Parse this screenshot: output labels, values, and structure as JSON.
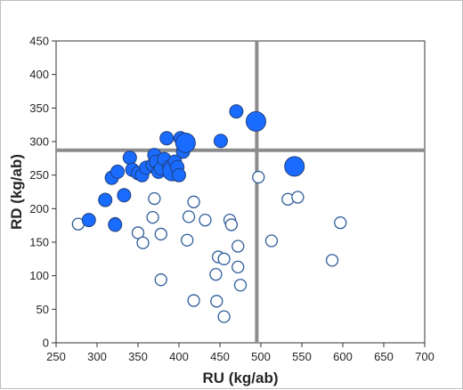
{
  "chart_data": {
    "type": "scatter",
    "xlabel": "RU (kg/ab)",
    "ylabel": "RD (kg/ab)",
    "xlim": [
      250,
      700
    ],
    "ylim": [
      0,
      450
    ],
    "xticks": [
      250,
      300,
      350,
      400,
      450,
      500,
      550,
      600,
      650,
      700
    ],
    "yticks": [
      0,
      50,
      100,
      150,
      200,
      250,
      300,
      350,
      400,
      450
    ],
    "grid": false,
    "legend": "none",
    "reference_lines": {
      "vertical_x": 495,
      "horizontal_y": 287
    },
    "colors": {
      "filled_fill": "#1a6bff",
      "filled_stroke": "#1f3f7a",
      "open_stroke": "#2e5c9a",
      "reference_line": "#8c8c8c",
      "plot_border": "#333333"
    },
    "series": [
      {
        "style": "filled",
        "points": [
          {
            "x": 290,
            "y": 183,
            "size": "small"
          },
          {
            "x": 310,
            "y": 213,
            "size": "small"
          },
          {
            "x": 318,
            "y": 246,
            "size": "small"
          },
          {
            "x": 322,
            "y": 176,
            "size": "small"
          },
          {
            "x": 325,
            "y": 255,
            "size": "small"
          },
          {
            "x": 333,
            "y": 220,
            "size": "small"
          },
          {
            "x": 340,
            "y": 276,
            "size": "small"
          },
          {
            "x": 343,
            "y": 258,
            "size": "small"
          },
          {
            "x": 350,
            "y": 253,
            "size": "small"
          },
          {
            "x": 355,
            "y": 250,
            "size": "small"
          },
          {
            "x": 360,
            "y": 261,
            "size": "small"
          },
          {
            "x": 368,
            "y": 265,
            "size": "small"
          },
          {
            "x": 370,
            "y": 280,
            "size": "small"
          },
          {
            "x": 372,
            "y": 270,
            "size": "small"
          },
          {
            "x": 375,
            "y": 255,
            "size": "small"
          },
          {
            "x": 378,
            "y": 260,
            "size": "small"
          },
          {
            "x": 382,
            "y": 274,
            "size": "small"
          },
          {
            "x": 385,
            "y": 305,
            "size": "small"
          },
          {
            "x": 388,
            "y": 262,
            "size": "small"
          },
          {
            "x": 392,
            "y": 256,
            "size": "large"
          },
          {
            "x": 395,
            "y": 270,
            "size": "small"
          },
          {
            "x": 398,
            "y": 262,
            "size": "small"
          },
          {
            "x": 400,
            "y": 250,
            "size": "small"
          },
          {
            "x": 402,
            "y": 305,
            "size": "small"
          },
          {
            "x": 405,
            "y": 285,
            "size": "small"
          },
          {
            "x": 408,
            "y": 298,
            "size": "large"
          },
          {
            "x": 451,
            "y": 301,
            "size": "small"
          },
          {
            "x": 470,
            "y": 345,
            "size": "small"
          },
          {
            "x": 494,
            "y": 330,
            "size": "large"
          },
          {
            "x": 541,
            "y": 263,
            "size": "large"
          }
        ]
      },
      {
        "style": "open",
        "points": [
          {
            "x": 277,
            "y": 177
          },
          {
            "x": 322,
            "y": 178
          },
          {
            "x": 350,
            "y": 164
          },
          {
            "x": 356,
            "y": 149
          },
          {
            "x": 368,
            "y": 187
          },
          {
            "x": 370,
            "y": 215
          },
          {
            "x": 378,
            "y": 162
          },
          {
            "x": 378,
            "y": 94
          },
          {
            "x": 410,
            "y": 153
          },
          {
            "x": 412,
            "y": 188
          },
          {
            "x": 418,
            "y": 210
          },
          {
            "x": 418,
            "y": 63
          },
          {
            "x": 432,
            "y": 183
          },
          {
            "x": 445,
            "y": 102
          },
          {
            "x": 446,
            "y": 62
          },
          {
            "x": 448,
            "y": 128
          },
          {
            "x": 455,
            "y": 125
          },
          {
            "x": 455,
            "y": 39
          },
          {
            "x": 462,
            "y": 183
          },
          {
            "x": 464,
            "y": 176
          },
          {
            "x": 472,
            "y": 144
          },
          {
            "x": 472,
            "y": 113
          },
          {
            "x": 475,
            "y": 86
          },
          {
            "x": 497,
            "y": 247
          },
          {
            "x": 513,
            "y": 152
          },
          {
            "x": 533,
            "y": 214
          },
          {
            "x": 545,
            "y": 217
          },
          {
            "x": 587,
            "y": 123
          },
          {
            "x": 597,
            "y": 179
          }
        ]
      }
    ]
  }
}
